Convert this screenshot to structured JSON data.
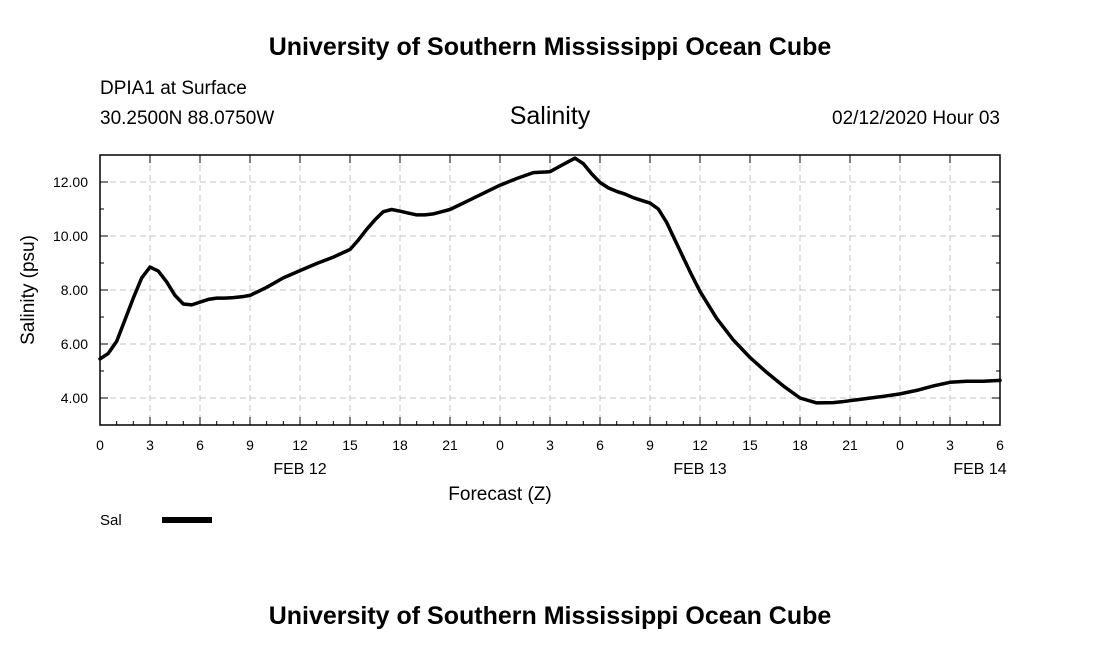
{
  "page": {
    "top_title": "University of Southern Mississippi Ocean Cube",
    "bottom_title": "University of Southern Mississippi Ocean Cube",
    "station": "DPIA1 at Surface",
    "coords": "30.2500N 88.0750W",
    "datetime": "02/12/2020 Hour 03"
  },
  "legend": {
    "label": "Sal"
  },
  "chart_data": {
    "type": "line",
    "title": "Salinity",
    "xlabel": "Forecast (Z)",
    "ylabel": "Salinity (psu)",
    "xlim": [
      0,
      54
    ],
    "ylim": [
      3.0,
      13.0
    ],
    "x_tick_values": [
      0,
      3,
      6,
      9,
      12,
      15,
      18,
      21,
      24,
      27,
      30,
      33,
      36,
      39,
      42,
      45,
      48,
      51,
      54
    ],
    "x_tick_labels": [
      "0",
      "3",
      "6",
      "9",
      "12",
      "15",
      "18",
      "21",
      "0",
      "3",
      "6",
      "9",
      "12",
      "15",
      "18",
      "21",
      "0",
      "3",
      "6"
    ],
    "y_tick_values": [
      4,
      6,
      8,
      10,
      12
    ],
    "y_tick_labels": [
      "4.00",
      "6.00",
      "8.00",
      "10.00",
      "12.00"
    ],
    "date_labels": [
      {
        "label": "FEB 12",
        "x": 12
      },
      {
        "label": "FEB 13",
        "x": 36
      },
      {
        "label": "FEB 14",
        "x": 52.8
      }
    ],
    "grid": true,
    "series": [
      {
        "name": "Sal",
        "color": "#000000",
        "x": [
          0,
          0.5,
          1,
          1.5,
          2,
          2.5,
          3,
          3.5,
          4,
          4.5,
          5,
          5.5,
          6,
          6.5,
          7,
          7.5,
          8,
          8.5,
          9,
          9.5,
          10,
          11,
          12,
          13,
          14,
          15,
          15.5,
          16,
          16.5,
          17,
          17.5,
          18,
          18.5,
          19,
          19.5,
          20,
          20.5,
          21,
          22,
          23,
          24,
          25,
          26,
          27,
          27.5,
          28,
          28.5,
          29,
          29.5,
          30,
          30.5,
          31,
          31.5,
          32,
          32.5,
          33,
          33.5,
          34,
          34.5,
          35,
          35.5,
          36,
          37,
          38,
          39,
          40,
          41,
          42,
          43,
          44,
          44.5,
          45,
          45.5,
          46,
          47,
          48,
          49,
          50,
          51,
          52,
          53,
          54
        ],
        "values": [
          5.45,
          5.65,
          6.1,
          6.9,
          7.7,
          8.45,
          8.85,
          8.7,
          8.3,
          7.8,
          7.48,
          7.45,
          7.55,
          7.65,
          7.7,
          7.7,
          7.72,
          7.75,
          7.8,
          7.95,
          8.1,
          8.45,
          8.72,
          8.98,
          9.22,
          9.5,
          9.85,
          10.25,
          10.6,
          10.9,
          10.98,
          10.92,
          10.85,
          10.78,
          10.78,
          10.82,
          10.9,
          10.98,
          11.28,
          11.58,
          11.88,
          12.13,
          12.35,
          12.38,
          12.55,
          12.72,
          12.88,
          12.68,
          12.3,
          11.98,
          11.78,
          11.65,
          11.55,
          11.42,
          11.32,
          11.22,
          11.0,
          10.5,
          9.85,
          9.2,
          8.55,
          7.95,
          6.95,
          6.15,
          5.5,
          4.95,
          4.45,
          4.0,
          3.82,
          3.83,
          3.86,
          3.9,
          3.94,
          3.98,
          4.06,
          4.15,
          4.28,
          4.45,
          4.58,
          4.62,
          4.62,
          4.65
        ]
      }
    ]
  }
}
